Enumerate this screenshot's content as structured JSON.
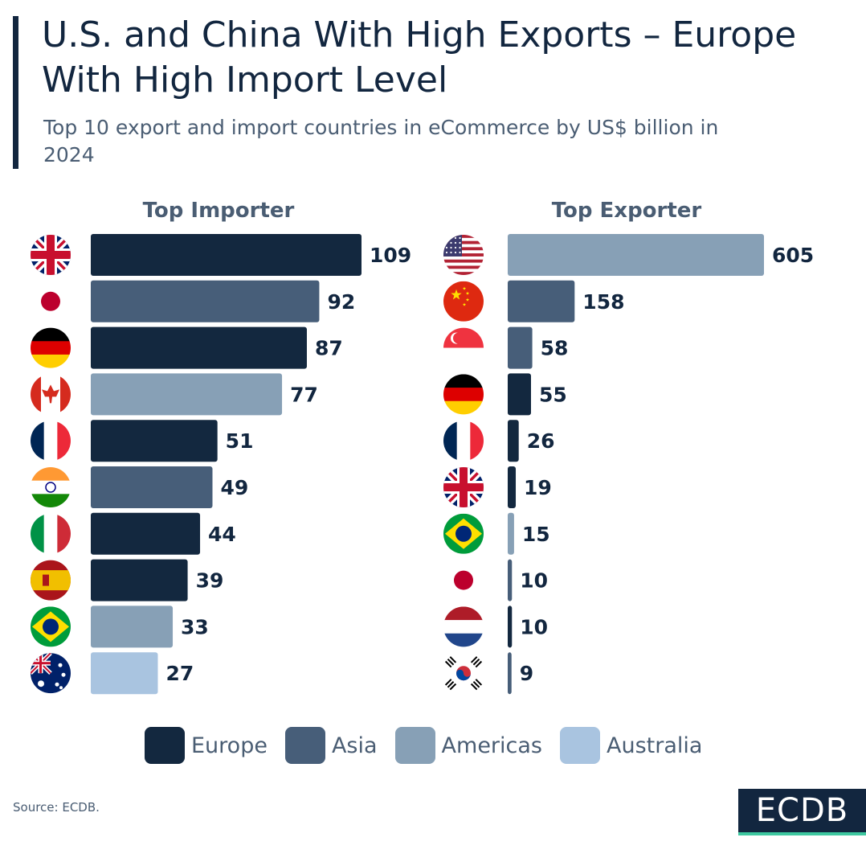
{
  "header": {
    "title": "U.S. and China With High Exports – Europe With High Import Level",
    "subtitle": "Top 10 export and import countries in eCommerce by US$ billion in 2024"
  },
  "colors": {
    "Europe": "#13283f",
    "Asia": "#475e79",
    "Americas": "#87a0b6",
    "Australia": "#a9c4e0",
    "text": "#12263f",
    "muted": "#4a5d73"
  },
  "chart_data": [
    {
      "type": "bar",
      "orientation": "horizontal",
      "title": "Top Importer",
      "unit": "US$ billion",
      "categories": [
        "United Kingdom",
        "Japan",
        "Germany",
        "Canada",
        "France",
        "India",
        "Italy",
        "Spain",
        "Brazil",
        "Australia"
      ],
      "values": [
        109,
        92,
        87,
        77,
        51,
        49,
        44,
        39,
        33,
        27
      ],
      "regions": [
        "Europe",
        "Asia",
        "Europe",
        "Americas",
        "Europe",
        "Asia",
        "Europe",
        "Europe",
        "Americas",
        "Australia"
      ],
      "flags": [
        "uk-flag-icon",
        "japan-flag-icon",
        "germany-flag-icon",
        "canada-flag-icon",
        "france-flag-icon",
        "india-flag-icon",
        "italy-flag-icon",
        "spain-flag-icon",
        "brazil-flag-icon",
        "australia-flag-icon"
      ]
    },
    {
      "type": "bar",
      "orientation": "horizontal",
      "title": "Top Exporter",
      "unit": "US$ billion",
      "categories": [
        "United States",
        "China",
        "Singapore",
        "Germany",
        "France",
        "United Kingdom",
        "Brazil",
        "Japan",
        "Netherlands",
        "South Korea"
      ],
      "values": [
        605,
        158,
        58,
        55,
        26,
        19,
        15,
        10,
        10,
        9
      ],
      "regions": [
        "Americas",
        "Asia",
        "Asia",
        "Europe",
        "Europe",
        "Europe",
        "Americas",
        "Asia",
        "Europe",
        "Asia"
      ],
      "flags": [
        "usa-flag-icon",
        "china-flag-icon",
        "singapore-flag-icon",
        "germany-flag-icon",
        "france-flag-icon",
        "uk-flag-icon",
        "brazil-flag-icon",
        "japan-flag-icon",
        "netherlands-flag-icon",
        "south-korea-flag-icon"
      ]
    }
  ],
  "legend": [
    {
      "label": "Europe",
      "color": "#13283f"
    },
    {
      "label": "Asia",
      "color": "#475e79"
    },
    {
      "label": "Americas",
      "color": "#87a0b6"
    },
    {
      "label": "Australia",
      "color": "#a9c4e0"
    }
  ],
  "footer": {
    "source": "Source: ECDB.",
    "logo_text": "ECDB"
  }
}
